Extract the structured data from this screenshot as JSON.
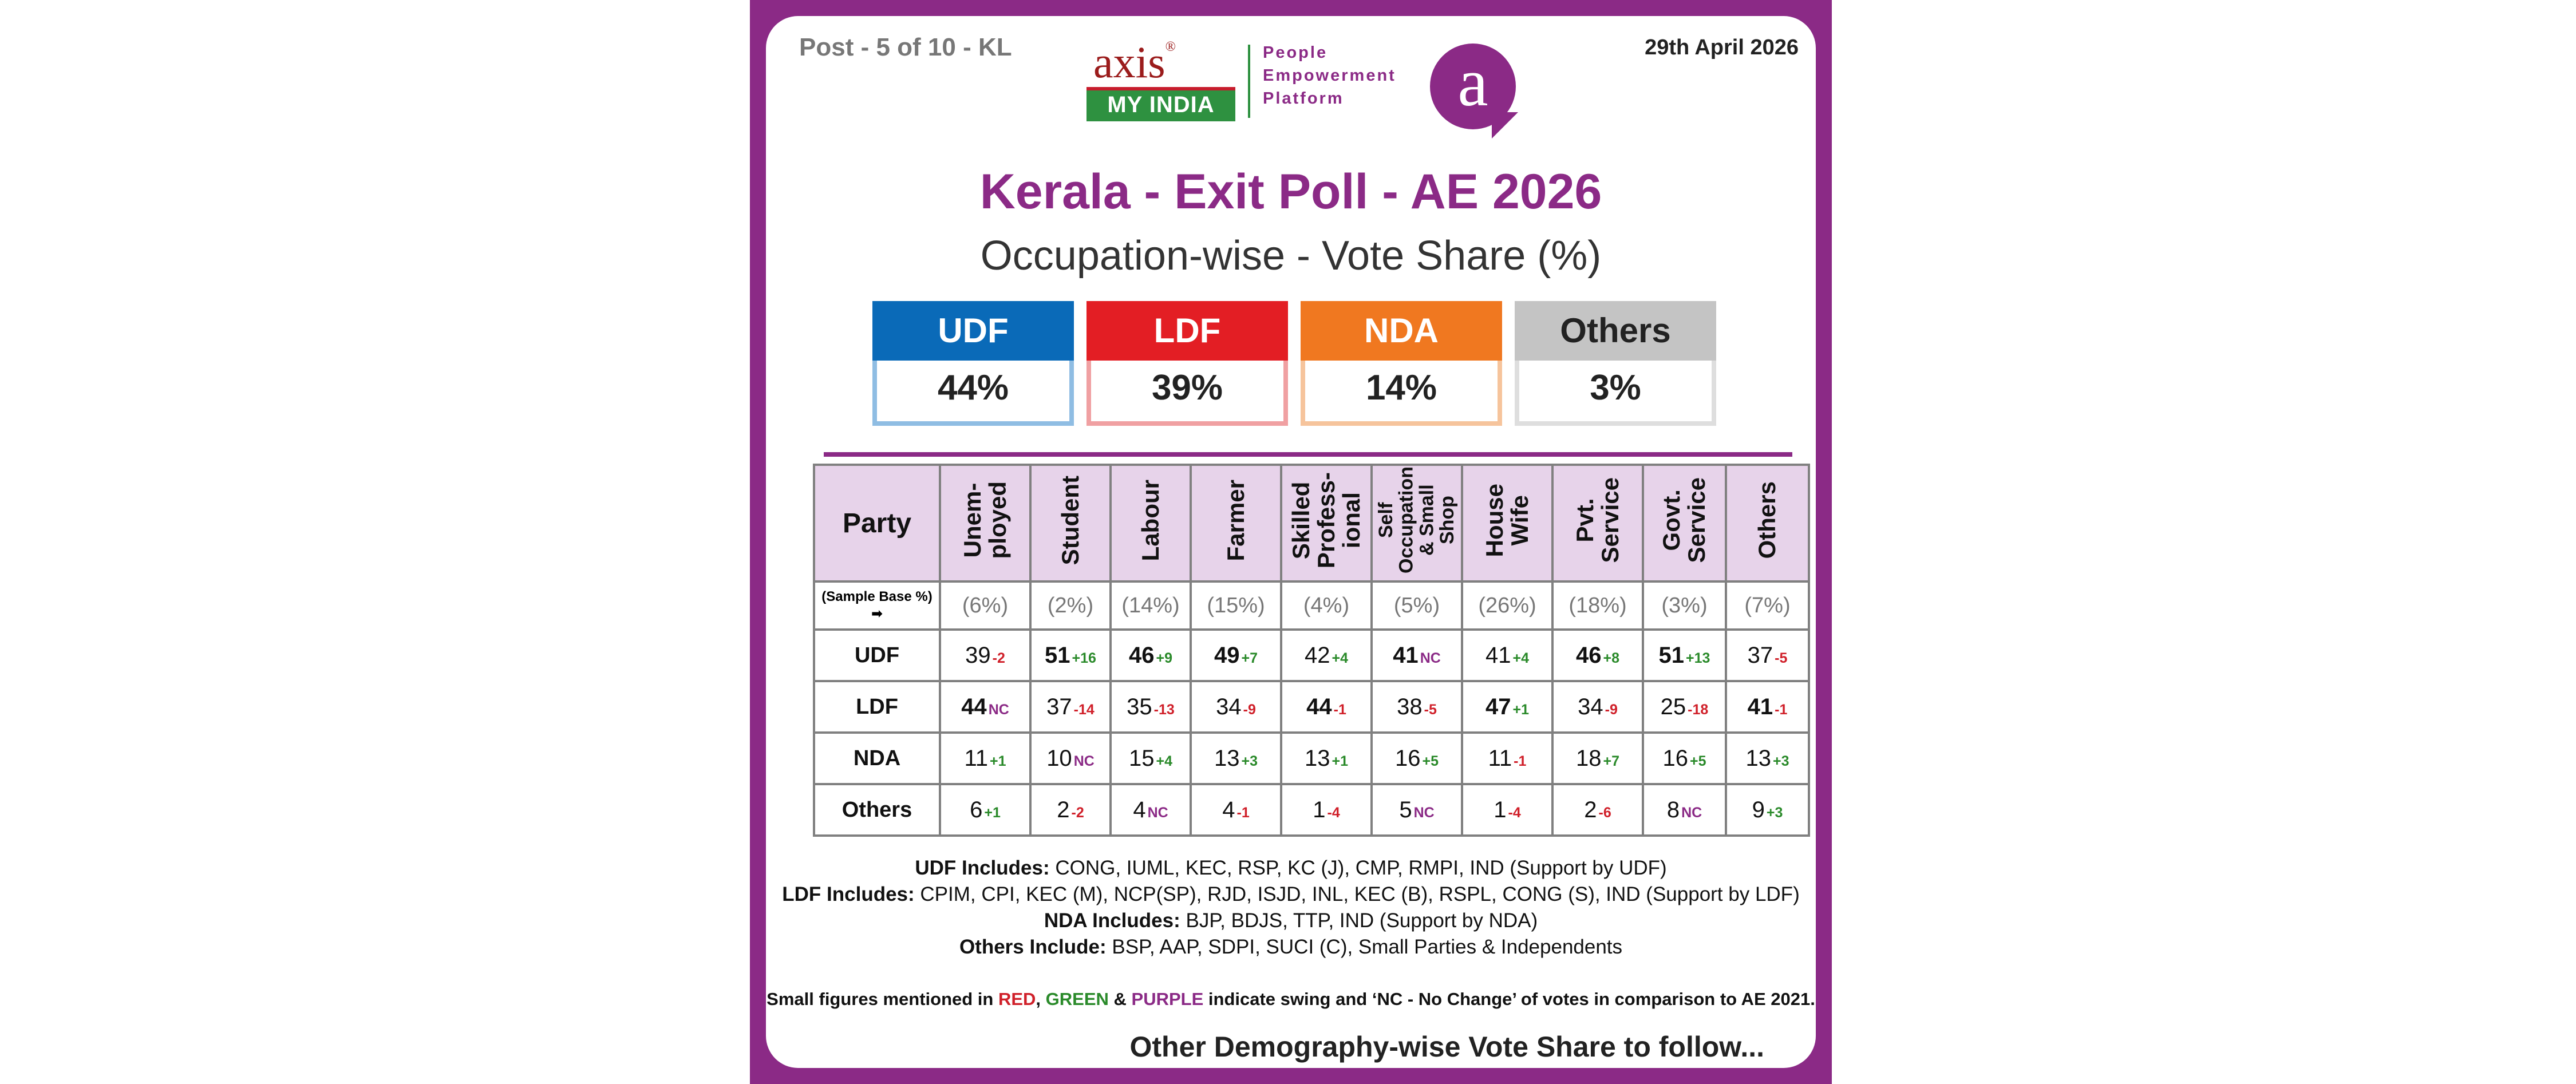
{
  "header": {
    "post": "Post - 5 of 10 - KL",
    "date": "29th April 2026",
    "logo_axis": "axis",
    "logo_reg": "®",
    "logo_myindia": "MY INDIA",
    "logo_tagline": [
      "People",
      "Empowerment",
      "Platform"
    ],
    "logo_bubble": "a"
  },
  "title": "Kerala - Exit Poll - AE 2026",
  "subtitle": "Occupation-wise - Vote Share (%)",
  "summary": [
    {
      "party": "UDF",
      "value": "44%",
      "color": "#0a6ab8",
      "light": "#8fbde3",
      "text": "#ffffff"
    },
    {
      "party": "LDF",
      "value": "39%",
      "color": "#e31e24",
      "light": "#f0a0a2",
      "text": "#ffffff"
    },
    {
      "party": "NDA",
      "value": "14%",
      "color": "#f07820",
      "light": "#f6c49c",
      "text": "#ffffff"
    },
    {
      "party": "Others",
      "value": "3%",
      "color": "#c4c4c4",
      "light": "#dedede",
      "text": "#222222"
    }
  ],
  "chart_data": {
    "type": "table",
    "row_header": "Party",
    "sample_base_label": "(Sample Base %)",
    "sample_base_arrow": "➡",
    "columns": [
      {
        "label": "Unem-\nployed",
        "small": false,
        "base": "(6%)"
      },
      {
        "label": "Student",
        "small": false,
        "base": "(2%)"
      },
      {
        "label": "Labour",
        "small": false,
        "base": "(14%)"
      },
      {
        "label": "Farmer",
        "small": false,
        "base": "(15%)"
      },
      {
        "label": "Skilled\nProfess-\nional",
        "small": false,
        "base": "(4%)"
      },
      {
        "label": "Self\nOccupation\n& Small\nShop",
        "small": true,
        "base": "(5%)"
      },
      {
        "label": "House\nWife",
        "small": false,
        "base": "(26%)"
      },
      {
        "label": "Pvt.\nService",
        "small": false,
        "base": "(18%)"
      },
      {
        "label": "Govt.\nService",
        "small": false,
        "base": "(3%)"
      },
      {
        "label": "Others",
        "small": false,
        "base": "(7%)"
      }
    ],
    "rows": [
      {
        "party": "UDF",
        "cells": [
          {
            "v": "39",
            "s": "-2",
            "b": false
          },
          {
            "v": "51",
            "s": "+16",
            "b": true
          },
          {
            "v": "46",
            "s": "+9",
            "b": true
          },
          {
            "v": "49",
            "s": "+7",
            "b": true
          },
          {
            "v": "42",
            "s": "+4",
            "b": false
          },
          {
            "v": "41",
            "s": "NC",
            "b": true
          },
          {
            "v": "41",
            "s": "+4",
            "b": false
          },
          {
            "v": "46",
            "s": "+8",
            "b": true
          },
          {
            "v": "51",
            "s": "+13",
            "b": true
          },
          {
            "v": "37",
            "s": "-5",
            "b": false
          }
        ]
      },
      {
        "party": "LDF",
        "cells": [
          {
            "v": "44",
            "s": "NC",
            "b": true
          },
          {
            "v": "37",
            "s": "-14",
            "b": false
          },
          {
            "v": "35",
            "s": "-13",
            "b": false
          },
          {
            "v": "34",
            "s": "-9",
            "b": false
          },
          {
            "v": "44",
            "s": "-1",
            "b": true
          },
          {
            "v": "38",
            "s": "-5",
            "b": false
          },
          {
            "v": "47",
            "s": "+1",
            "b": true
          },
          {
            "v": "34",
            "s": "-9",
            "b": false
          },
          {
            "v": "25",
            "s": "-18",
            "b": false
          },
          {
            "v": "41",
            "s": "-1",
            "b": true
          }
        ]
      },
      {
        "party": "NDA",
        "cells": [
          {
            "v": "11",
            "s": "+1",
            "b": false
          },
          {
            "v": "10",
            "s": "NC",
            "b": false
          },
          {
            "v": "15",
            "s": "+4",
            "b": false
          },
          {
            "v": "13",
            "s": "+3",
            "b": false
          },
          {
            "v": "13",
            "s": "+1",
            "b": false
          },
          {
            "v": "16",
            "s": "+5",
            "b": false
          },
          {
            "v": "11",
            "s": "-1",
            "b": false
          },
          {
            "v": "18",
            "s": "+7",
            "b": false
          },
          {
            "v": "16",
            "s": "+5",
            "b": false
          },
          {
            "v": "13",
            "s": "+3",
            "b": false
          }
        ]
      },
      {
        "party": "Others",
        "cells": [
          {
            "v": "6",
            "s": "+1",
            "b": false
          },
          {
            "v": "2",
            "s": "-2",
            "b": false
          },
          {
            "v": "4",
            "s": "NC",
            "b": false
          },
          {
            "v": "4",
            "s": "-1",
            "b": false
          },
          {
            "v": "1",
            "s": "-4",
            "b": false
          },
          {
            "v": "5",
            "s": "NC",
            "b": false
          },
          {
            "v": "1",
            "s": "-4",
            "b": false
          },
          {
            "v": "2",
            "s": "-6",
            "b": false
          },
          {
            "v": "8",
            "s": "NC",
            "b": false
          },
          {
            "v": "9",
            "s": "+3",
            "b": false
          }
        ]
      }
    ]
  },
  "notes": [
    {
      "label": "UDF Includes:",
      "text": " CONG, IUML, KEC, RSP, KC (J), CMP, RMPI, IND (Support by UDF)"
    },
    {
      "label": "LDF Includes:",
      "text": " CPIM, CPI, KEC (M), NCP(SP), RJD, ISJD, INL, KEC (B), RSPL, CONG (S), IND (Support by LDF)"
    },
    {
      "label": "NDA Includes:",
      "text": " BJP, BDJS, TTP, IND (Support by NDA)"
    },
    {
      "label": "Others Include:",
      "text": " BSP, AAP, SDPI, SUCI (C), Small Parties & Independents"
    }
  ],
  "legend_note": {
    "prefix": "Small figures mentioned in ",
    "red": "RED",
    "sep1": ", ",
    "green": "GREEN",
    "sep2": " & ",
    "purple": "PURPLE",
    "suffix": " indicate swing and ‘NC - No Change’ of votes in comparison to AE 2021."
  },
  "footer": "Other Demography-wise Vote Share to follow..."
}
